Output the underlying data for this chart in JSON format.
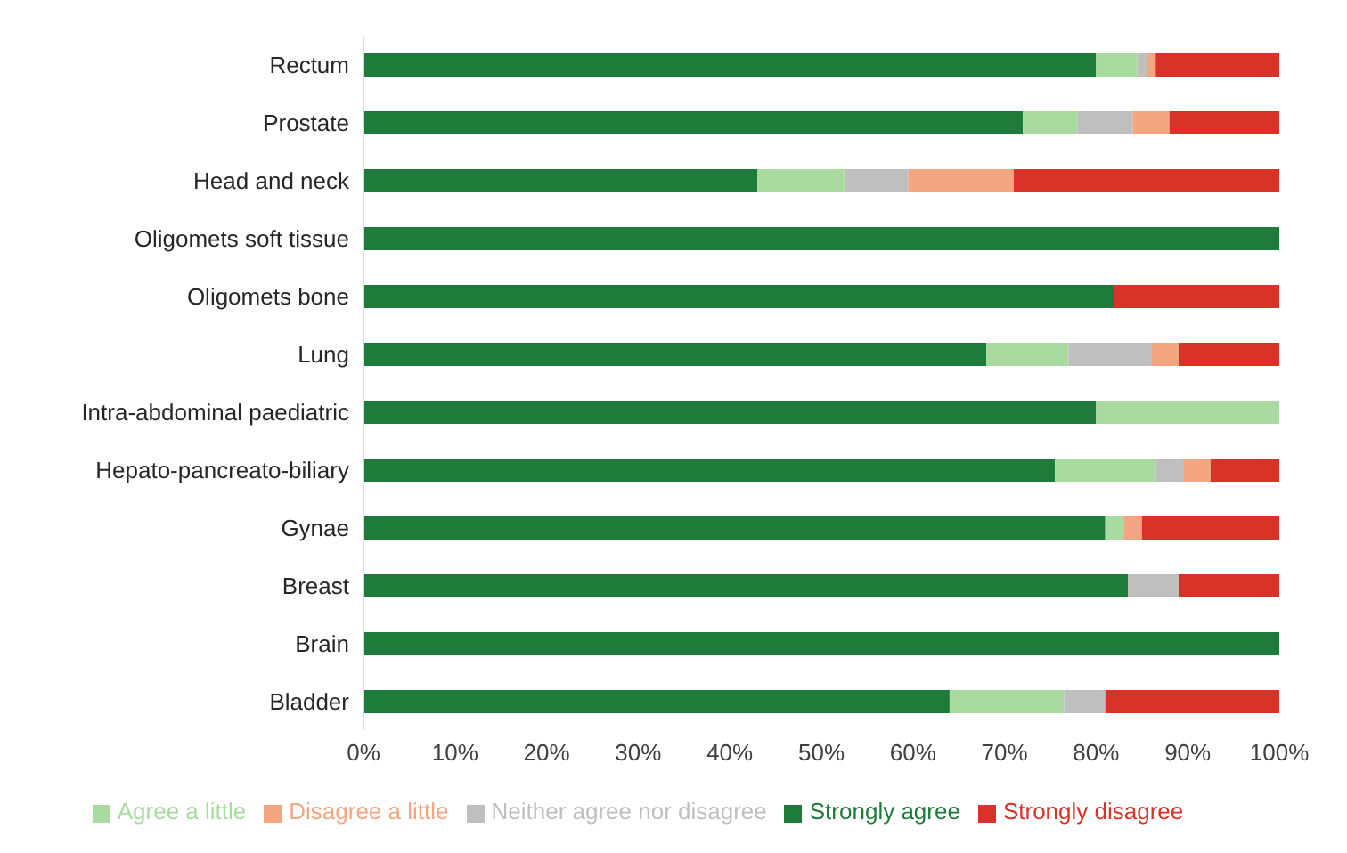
{
  "chart_data": {
    "type": "bar",
    "orientation": "horizontal",
    "stacked": true,
    "categories": [
      "Rectum",
      "Prostate",
      "Head and neck",
      "Oligomets soft tissue",
      "Oligomets bone",
      "Lung",
      "Intra-abdominal paediatric",
      "Hepato-pancreato-biliary",
      "Gynae",
      "Breast",
      "Brain",
      "Bladder"
    ],
    "series": [
      {
        "name": "Strongly agree",
        "color": "#1e7b3a",
        "values": [
          80,
          72,
          43,
          100,
          82,
          68,
          80,
          75.5,
          81,
          83.5,
          100,
          64
        ]
      },
      {
        "name": "Agree a little",
        "color": "#a9dba0",
        "values": [
          4.5,
          6,
          9.5,
          0,
          0,
          9,
          20,
          11,
          2,
          0,
          0,
          12.5
        ]
      },
      {
        "name": "Neither agree nor disagree",
        "color": "#bfbfbf",
        "values": [
          1,
          6,
          7,
          0,
          0,
          9,
          0,
          3,
          0,
          5.5,
          0,
          4.5
        ]
      },
      {
        "name": "Disagree a little",
        "color": "#f4a582",
        "values": [
          1,
          4,
          11.5,
          0,
          0,
          3,
          0,
          3,
          2,
          0,
          0,
          0
        ]
      },
      {
        "name": "Strongly disagree",
        "color": "#d93228",
        "values": [
          13.5,
          12,
          29,
          0,
          18,
          11,
          0,
          7.5,
          15,
          11,
          0,
          19
        ]
      }
    ],
    "xlim": [
      0,
      100
    ],
    "xticks": [
      {
        "value": 0,
        "label": "0%"
      },
      {
        "value": 10,
        "label": "10%"
      },
      {
        "value": 20,
        "label": "20%"
      },
      {
        "value": 30,
        "label": "30%"
      },
      {
        "value": 40,
        "label": "40%"
      },
      {
        "value": 50,
        "label": "50%"
      },
      {
        "value": 60,
        "label": "60%"
      },
      {
        "value": 70,
        "label": "70%"
      },
      {
        "value": 80,
        "label": "80%"
      },
      {
        "value": 90,
        "label": "90%"
      },
      {
        "value": 100,
        "label": "100%"
      }
    ],
    "grid": false,
    "legend": "bottom"
  }
}
